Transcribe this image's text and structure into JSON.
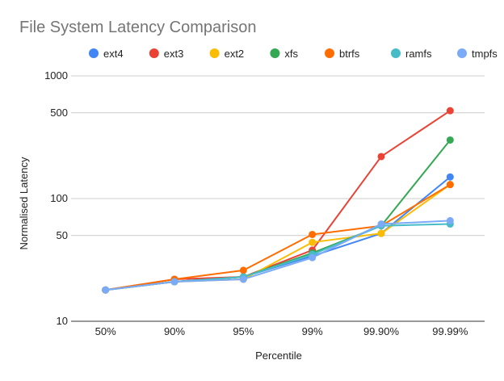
{
  "chart_data": {
    "type": "line",
    "title": "File System Latency Comparison",
    "xlabel": "Percentile",
    "ylabel": "Normalised Latency",
    "y_scale": "log",
    "ylim": [
      10,
      1000
    ],
    "y_ticks": [
      {
        "value": 10,
        "label": "10"
      },
      {
        "value": 50,
        "label": "50"
      },
      {
        "value": 100,
        "label": "100"
      },
      {
        "value": 500,
        "label": "500"
      },
      {
        "value": 1000,
        "label": "1000"
      }
    ],
    "grid": true,
    "legend_position": "top",
    "categories": [
      "50%",
      "90%",
      "95%",
      "99%",
      "99.90%",
      "99.99%"
    ],
    "series": [
      {
        "name": "ext4",
        "color": "#4285f4",
        "values": [
          18,
          21,
          23,
          34,
          52,
          150
        ]
      },
      {
        "name": "ext3",
        "color": "#ea4335",
        "values": [
          18,
          22,
          23,
          38,
          220,
          520
        ]
      },
      {
        "name": "ext2",
        "color": "#fbbc04",
        "values": [
          18,
          21,
          22,
          44,
          52,
          130
        ]
      },
      {
        "name": "xfs",
        "color": "#34a853",
        "values": [
          18,
          21,
          23,
          36,
          60,
          300
        ]
      },
      {
        "name": "btrfs",
        "color": "#ff6d01",
        "values": [
          18,
          22,
          26,
          51,
          60,
          130
        ]
      },
      {
        "name": "ramfs",
        "color": "#46bdc6",
        "values": [
          18,
          21,
          23,
          35,
          60,
          62
        ]
      },
      {
        "name": "tmpfs",
        "color": "#7baaf7",
        "values": [
          18,
          21,
          22,
          33,
          62,
          66
        ]
      }
    ]
  }
}
